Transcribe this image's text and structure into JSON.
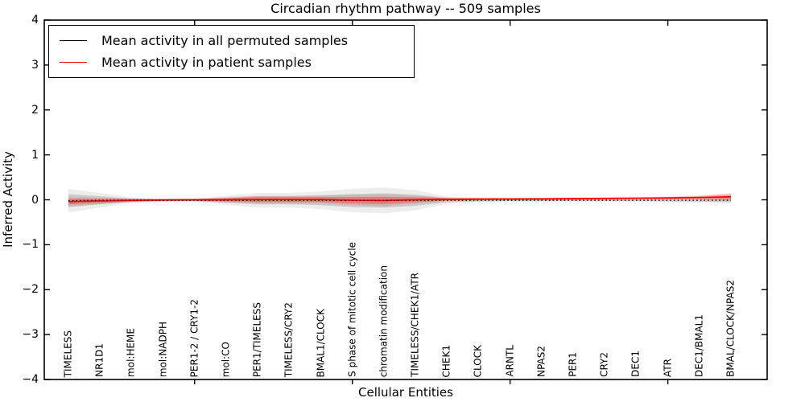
{
  "figure": {
    "title": "Circadian rhythm pathway -- 509 samples",
    "xlabel": "Cellular Entities",
    "ylabel": "Inferred Activity"
  },
  "legend": {
    "entries": [
      {
        "label": "Mean activity in all permuted samples",
        "color": "#000000"
      },
      {
        "label": "Mean activity in patient samples",
        "color": "#ff0000"
      }
    ]
  },
  "chart_data": {
    "type": "line",
    "title": "Circadian rhythm pathway -- 509 samples",
    "xlabel": "Cellular Entities",
    "ylabel": "Inferred Activity",
    "ylim": [
      -4,
      4
    ],
    "ytick_values": [
      4,
      3,
      2,
      1,
      0,
      -1,
      -2,
      -3,
      -4
    ],
    "ytick_labels": [
      "4",
      "3",
      "2",
      "1",
      "0",
      "−1",
      "−2",
      "−3",
      "−4"
    ],
    "x_major_tick_indices": [
      4,
      9,
      14,
      19
    ],
    "grid": false,
    "legend_position": "upper left",
    "categories": [
      "TIMELESS",
      "NR1D1",
      "mol:HEME",
      "mol:NADPH",
      "PER1-2 / CRY1-2",
      "mol:CO",
      "PER1/TIMELESS",
      "TIMELESS/CRY2",
      "BMAL1/CLOCK",
      "S phase of mitotic cell cycle",
      "chromatin modification",
      "TIMELESS/CHEK1/ATR",
      "CHEK1",
      "CLOCK",
      "ARNTL",
      "NPAS2",
      "PER1",
      "CRY2",
      "DEC1",
      "ATR",
      "DEC1/BMAL1",
      "BMAL/CLOCK/NPAS2"
    ],
    "series": [
      {
        "name": "Mean activity in all permuted samples",
        "color": "#000000",
        "style": "dotted",
        "values": [
          -0.02,
          -0.01,
          -0.01,
          -0.01,
          -0.01,
          -0.01,
          -0.01,
          -0.01,
          -0.01,
          -0.015,
          -0.015,
          -0.01,
          -0.01,
          -0.01,
          -0.01,
          -0.01,
          -0.01,
          -0.01,
          -0.01,
          -0.01,
          -0.01,
          -0.01
        ],
        "band_halfwidth": [
          0.145,
          0.09,
          0.035,
          0.02,
          0.02,
          0.055,
          0.09,
          0.09,
          0.11,
          0.145,
          0.16,
          0.125,
          0.045,
          0.025,
          0.02,
          0.02,
          0.02,
          0.02,
          0.02,
          0.025,
          0.03,
          0.04
        ]
      },
      {
        "name": "Mean activity in patient samples",
        "color": "#ff0000",
        "style": "solid",
        "values": [
          -0.04,
          -0.025,
          -0.012,
          -0.005,
          0.0,
          0.0,
          0.005,
          0.005,
          0.005,
          -0.01,
          -0.015,
          0.0,
          0.01,
          0.015,
          0.018,
          0.02,
          0.025,
          0.03,
          0.035,
          0.04,
          0.05,
          0.065
        ],
        "band_halfwidth": [
          0.063,
          0.045,
          0.027,
          0.018,
          0.018,
          0.036,
          0.054,
          0.054,
          0.054,
          0.07,
          0.08,
          0.054,
          0.027,
          0.02,
          0.018,
          0.018,
          0.018,
          0.018,
          0.018,
          0.02,
          0.03,
          0.055
        ]
      }
    ]
  }
}
